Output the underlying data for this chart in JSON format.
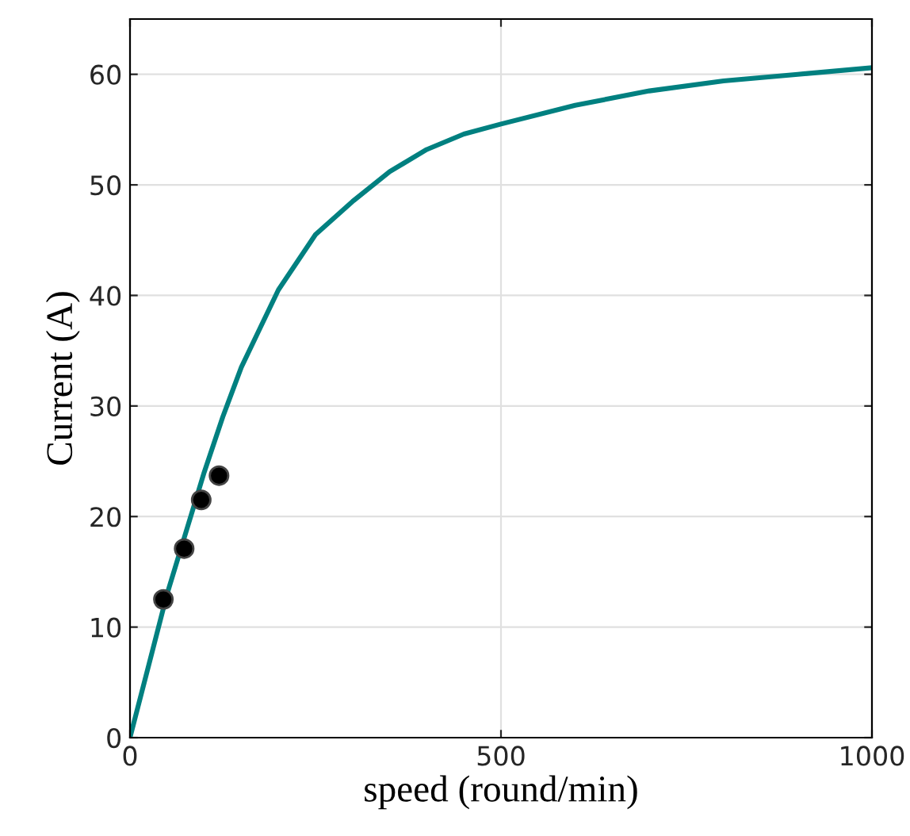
{
  "chart_data": {
    "type": "line",
    "xlabel": "speed (round/min)",
    "ylabel": "Current (A)",
    "xlim": [
      0,
      1000
    ],
    "ylim": [
      0,
      65
    ],
    "xticks": [
      0,
      500,
      1000
    ],
    "yticks": [
      0,
      10,
      20,
      30,
      40,
      50,
      60
    ],
    "grid": true,
    "legend": false,
    "series": [
      {
        "color": "#008080",
        "marker": "none",
        "x": [
          0,
          25,
          50,
          75,
          100,
          125,
          150,
          175,
          200,
          250,
          300,
          350,
          400,
          450,
          500,
          600,
          700,
          800,
          900,
          1000
        ],
        "values": [
          0,
          6.5,
          13,
          18.5,
          24,
          29,
          33.5,
          37,
          40.5,
          45.5,
          48.5,
          51.2,
          53.2,
          54.6,
          55.5,
          57.2,
          58.5,
          59.4,
          60.0,
          60.6
        ]
      },
      {
        "type": "scatter",
        "color": "#000000",
        "marker": "circle",
        "x": [
          45,
          73,
          96,
          120
        ],
        "values": [
          12.5,
          17.1,
          21.5,
          23.7
        ]
      }
    ]
  }
}
